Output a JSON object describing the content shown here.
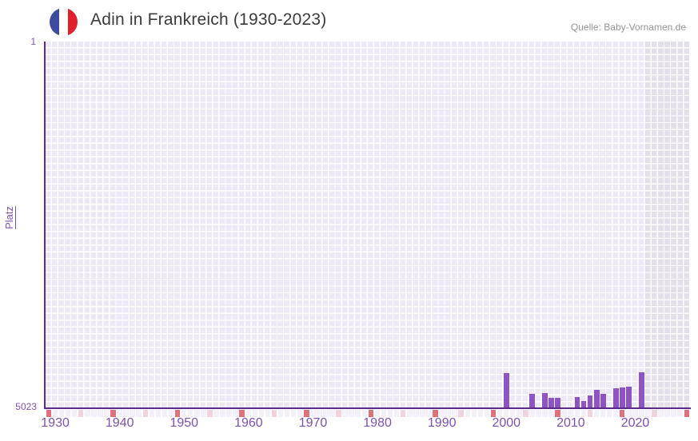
{
  "header": {
    "title": "Adin in Frankreich (1930-2023)",
    "source": "Quelle: Baby-Vornamen.de"
  },
  "chart_data": {
    "type": "bar",
    "title": "Adin in Frankreich (1930-2023)",
    "xlabel": "",
    "ylabel": "Platz",
    "y_axis": {
      "top_label": "1",
      "bottom_label": "5023",
      "min": 1,
      "max": 5023,
      "inverted": true
    },
    "x_axis": {
      "start_year": 1929,
      "end_year": 2028,
      "decade_ticks": [
        {
          "year": 1930,
          "label": "1930"
        },
        {
          "year": 1940,
          "label": "1940"
        },
        {
          "year": 1950,
          "label": "1950"
        },
        {
          "year": 1960,
          "label": "1960"
        },
        {
          "year": 1970,
          "label": "1970"
        },
        {
          "year": 1980,
          "label": "1980"
        },
        {
          "year": 1990,
          "label": "1990"
        },
        {
          "year": 2000,
          "label": "2000"
        },
        {
          "year": 2010,
          "label": "2010"
        },
        {
          "year": 2020,
          "label": "2020"
        }
      ]
    },
    "series": [
      {
        "name": "Platz von Adin in Frankreich",
        "points": [
          {
            "year": 2000,
            "rank": 4550
          },
          {
            "year": 2004,
            "rank": 4835
          },
          {
            "year": 2006,
            "rank": 4825
          },
          {
            "year": 2007,
            "rank": 4890
          },
          {
            "year": 2008,
            "rank": 4890
          },
          {
            "year": 2011,
            "rank": 4885
          },
          {
            "year": 2012,
            "rank": 4935
          },
          {
            "year": 2013,
            "rank": 4860
          },
          {
            "year": 2014,
            "rank": 4780
          },
          {
            "year": 2015,
            "rank": 4835
          },
          {
            "year": 2017,
            "rank": 4760
          },
          {
            "year": 2018,
            "rank": 4750
          },
          {
            "year": 2019,
            "rank": 4740
          },
          {
            "year": 2021,
            "rank": 4540
          }
        ]
      }
    ],
    "no_data_region": {
      "from_year": 2022,
      "to_year": 2028
    },
    "below_axis_marks": {
      "major_years": [
        1929,
        1939,
        1949,
        1959,
        1969,
        1979,
        1989,
        1998,
        2008,
        2018,
        2028
      ],
      "minor_years": [
        1934,
        1944,
        1954,
        1964,
        1974,
        1984,
        1993,
        2003,
        2013,
        2023
      ]
    },
    "grid": true,
    "legend": "none"
  },
  "colors": {
    "bar": "#8e54c3",
    "axis_line": "#5b2b8c",
    "tick_text": "#7d51b2",
    "cell": "#ece8f6",
    "cell_nodata": "#e3e0ea",
    "below_default": "#f4f0fa",
    "below_major": "#df707c",
    "below_minor": "#f0d3dd",
    "title_text": "#3b3b3b",
    "source_text": "#949494",
    "flag_blue": "#3c4b9e",
    "flag_white": "#ffffff",
    "flag_red": "#e0212d"
  }
}
